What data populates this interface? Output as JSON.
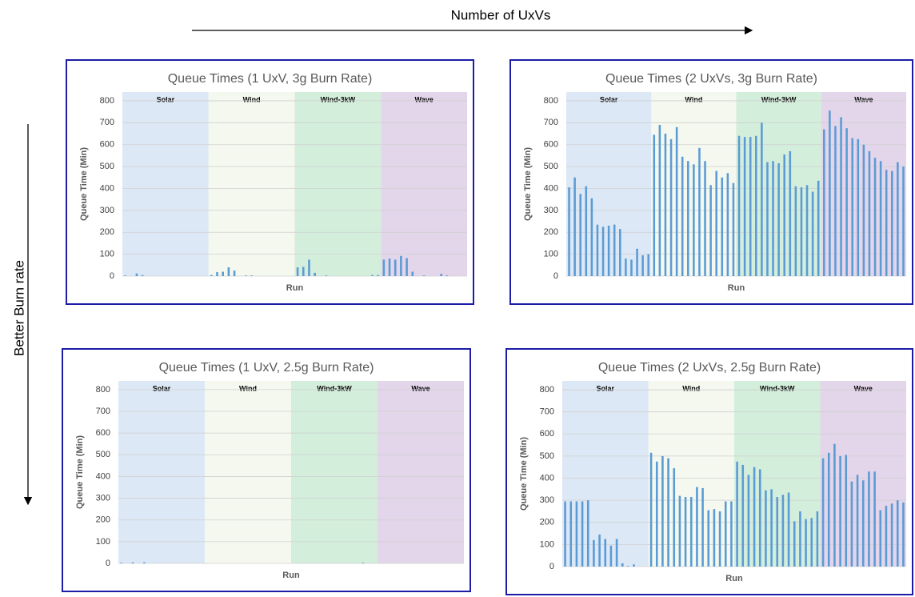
{
  "annotations": {
    "x_arrow": "Number of UxVs",
    "y_arrow": "Better Burn rate"
  },
  "chart_data": [
    {
      "type": "bar",
      "title": "Queue Times (1 UxV, 3g Burn Rate)",
      "ylabel": "Queue Time (Min)",
      "xlabel": "Run",
      "ylim": [
        0,
        840
      ],
      "yticks": [
        0,
        100,
        200,
        300,
        400,
        500,
        600,
        700,
        800
      ],
      "grid": true,
      "bar_color": "#5b9bd5",
      "series": [
        {
          "name": "Solar",
          "color": "#dce8f5",
          "values": [
            3,
            0,
            12,
            5,
            0,
            0,
            0,
            0,
            0,
            0,
            0,
            0,
            0,
            0,
            0
          ]
        },
        {
          "name": "Wind",
          "color": "#f4f8ee",
          "values": [
            5,
            18,
            20,
            40,
            25,
            0,
            3,
            3,
            0,
            0,
            0,
            0,
            0,
            0,
            0
          ]
        },
        {
          "name": "Wind-3kW",
          "color": "#d3eedb",
          "values": [
            40,
            42,
            75,
            15,
            0,
            3,
            0,
            0,
            0,
            0,
            0,
            0,
            0,
            5,
            5
          ]
        },
        {
          "name": "Wave",
          "color": "#e3d5ea",
          "values": [
            75,
            80,
            75,
            92,
            82,
            20,
            0,
            3,
            0,
            0,
            10,
            3,
            0,
            0,
            0
          ]
        }
      ]
    },
    {
      "type": "bar",
      "title": "Queue Times (2 UxVs, 3g Burn Rate)",
      "ylabel": "Queue Time (Min)",
      "xlabel": "Run",
      "ylim": [
        0,
        840
      ],
      "yticks": [
        0,
        100,
        200,
        300,
        400,
        500,
        600,
        700,
        800
      ],
      "grid": true,
      "bar_color": "#5b9bd5",
      "series": [
        {
          "name": "Solar",
          "color": "#dce8f5",
          "values": [
            405,
            450,
            375,
            410,
            355,
            235,
            225,
            230,
            235,
            215,
            80,
            75,
            125,
            95,
            100
          ]
        },
        {
          "name": "Wind",
          "color": "#f4f8ee",
          "values": [
            645,
            690,
            650,
            625,
            680,
            545,
            525,
            510,
            585,
            525,
            415,
            480,
            450,
            470,
            425
          ]
        },
        {
          "name": "Wind-3kW",
          "color": "#d3eedb",
          "values": [
            640,
            635,
            635,
            640,
            700,
            520,
            525,
            515,
            555,
            570,
            410,
            405,
            415,
            385,
            435
          ]
        },
        {
          "name": "Wave",
          "color": "#e3d5ea",
          "values": [
            670,
            755,
            685,
            725,
            675,
            630,
            625,
            600,
            570,
            540,
            525,
            485,
            480,
            520,
            500
          ]
        }
      ]
    },
    {
      "type": "bar",
      "title": "Queue Times (1 UxV, 2.5g Burn Rate)",
      "ylabel": "Queue Time (Min)",
      "xlabel": "Run",
      "ylim": [
        0,
        840
      ],
      "yticks": [
        0,
        100,
        200,
        300,
        400,
        500,
        600,
        700,
        800
      ],
      "grid": true,
      "bar_color": "#5b9bd5",
      "series": [
        {
          "name": "Solar",
          "color": "#dce8f5",
          "values": [
            3,
            0,
            5,
            0,
            5,
            0,
            0,
            0,
            0,
            0,
            0,
            0,
            0,
            0,
            0
          ]
        },
        {
          "name": "Wind",
          "color": "#f4f8ee",
          "values": [
            0,
            0,
            0,
            0,
            0,
            0,
            0,
            0,
            0,
            0,
            0,
            0,
            0,
            0,
            0
          ]
        },
        {
          "name": "Wind-3kW",
          "color": "#d3eedb",
          "values": [
            0,
            0,
            0,
            0,
            0,
            0,
            0,
            0,
            0,
            0,
            0,
            0,
            3,
            0,
            0
          ]
        },
        {
          "name": "Wave",
          "color": "#e3d5ea",
          "values": [
            0,
            0,
            0,
            0,
            0,
            0,
            0,
            0,
            0,
            0,
            0,
            0,
            0,
            0,
            0
          ]
        }
      ]
    },
    {
      "type": "bar",
      "title": "Queue Times (2 UxVs, 2.5g Burn Rate)",
      "ylabel": "Queue Time (Min)",
      "xlabel": "Run",
      "ylim": [
        0,
        840
      ],
      "yticks": [
        0,
        100,
        200,
        300,
        400,
        500,
        600,
        700,
        800
      ],
      "grid": true,
      "bar_color": "#5b9bd5",
      "series": [
        {
          "name": "Solar",
          "color": "#dce8f5",
          "values": [
            295,
            295,
            295,
            295,
            300,
            120,
            145,
            125,
            95,
            125,
            15,
            3,
            10,
            0,
            0
          ]
        },
        {
          "name": "Wind",
          "color": "#f4f8ee",
          "values": [
            515,
            475,
            500,
            490,
            445,
            320,
            315,
            315,
            360,
            355,
            255,
            260,
            250,
            295,
            295
          ]
        },
        {
          "name": "Wind-3kW",
          "color": "#d3eedb",
          "values": [
            475,
            460,
            415,
            450,
            440,
            345,
            350,
            315,
            325,
            335,
            205,
            250,
            215,
            220,
            250
          ]
        },
        {
          "name": "Wave",
          "color": "#e3d5ea",
          "values": [
            490,
            515,
            555,
            500,
            505,
            385,
            415,
            390,
            430,
            430,
            255,
            275,
            285,
            300,
            290
          ]
        }
      ]
    }
  ]
}
